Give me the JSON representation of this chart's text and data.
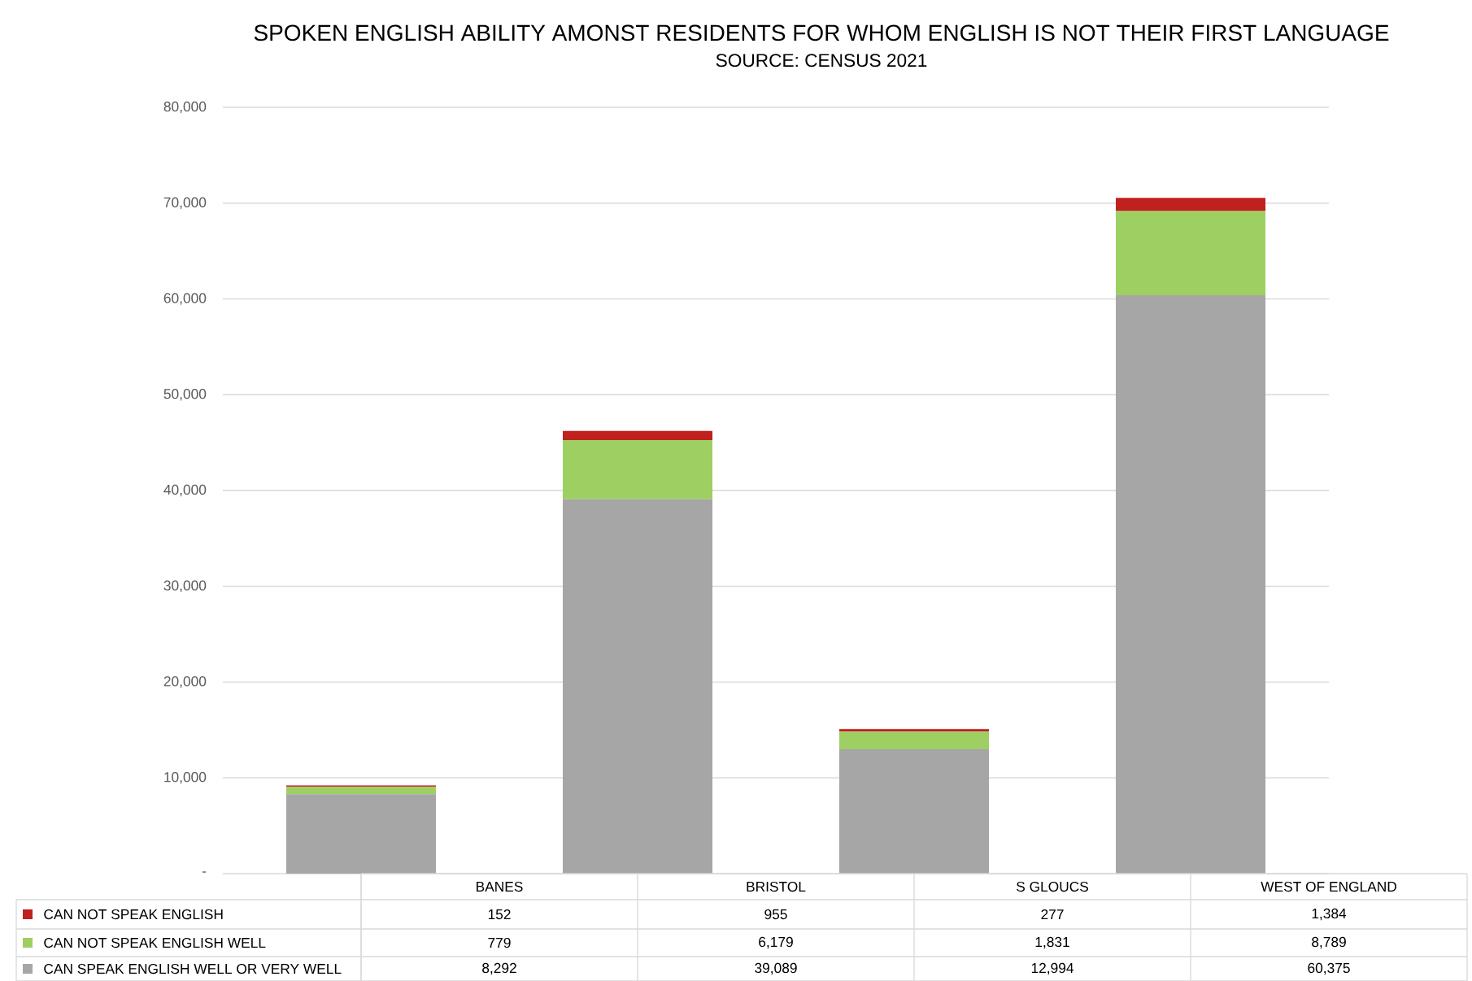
{
  "chart_data": {
    "type": "bar",
    "stacked": true,
    "title": "SPOKEN ENGLISH ABILITY AMONST RESIDENTS FOR WHOM ENGLISH IS NOT THEIR FIRST LANGUAGE",
    "subtitle": "SOURCE:  CENSUS 2021",
    "categories": [
      "BANES",
      "BRISTOL",
      "S GLOUCS",
      "WEST OF ENGLAND"
    ],
    "series": [
      {
        "name": "CAN SPEAK ENGLISH WELL OR VERY WELL",
        "color": "#a6a6a6",
        "values": [
          8292,
          39089,
          12994,
          60375
        ],
        "value_labels": [
          "8,292",
          "39,089",
          "12,994",
          "60,375"
        ]
      },
      {
        "name": "CAN NOT SPEAK ENGLISH WELL",
        "color": "#9dcf62",
        "values": [
          779,
          6179,
          1831,
          8789
        ],
        "value_labels": [
          "779",
          "6,179",
          "1,831",
          "8,789"
        ]
      },
      {
        "name": "CAN NOT SPEAK ENGLISH",
        "color": "#c0201e",
        "values": [
          152,
          955,
          277,
          1384
        ],
        "value_labels": [
          "152",
          "955",
          "277",
          "1,384"
        ]
      }
    ],
    "ylim": [
      0,
      80000
    ],
    "yticks": [
      {
        "value": 0,
        "label": "-"
      },
      {
        "value": 10000,
        "label": "10,000"
      },
      {
        "value": 20000,
        "label": "20,000"
      },
      {
        "value": 30000,
        "label": "30,000"
      },
      {
        "value": 40000,
        "label": "40,000"
      },
      {
        "value": 50000,
        "label": "50,000"
      },
      {
        "value": 60000,
        "label": "60,000"
      },
      {
        "value": 70000,
        "label": "70,000"
      },
      {
        "value": 80000,
        "label": "80,000"
      }
    ],
    "grid": "y",
    "legend": "bottom"
  }
}
